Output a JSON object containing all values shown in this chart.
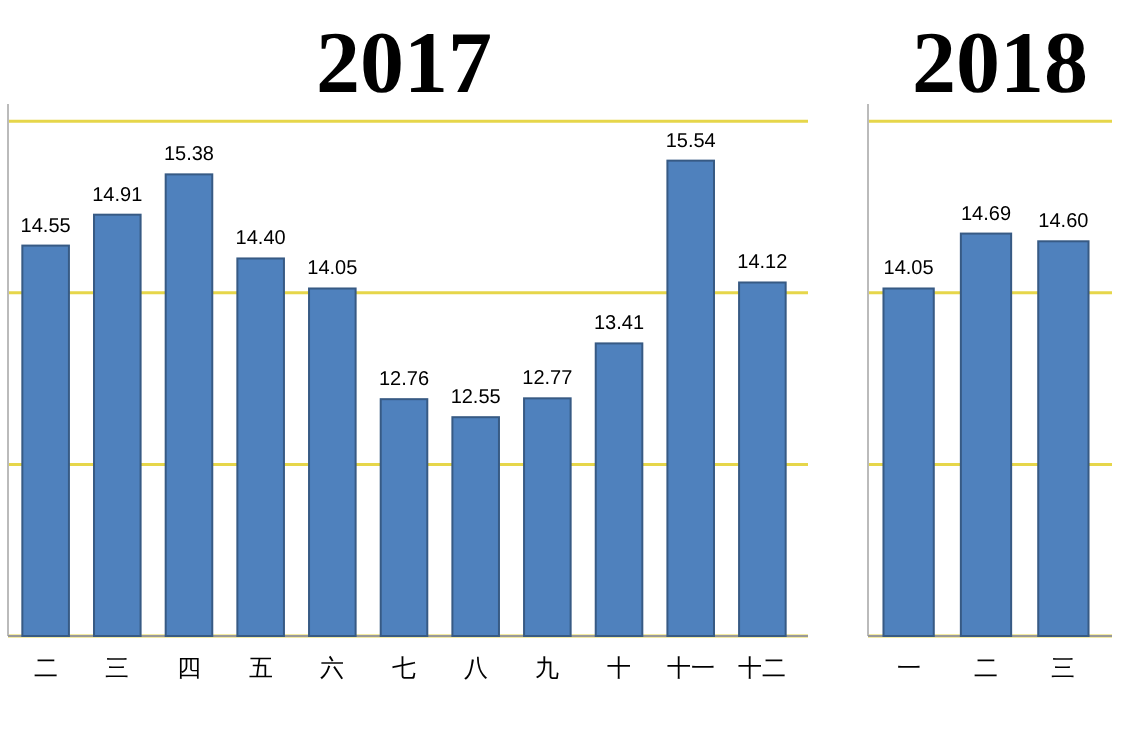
{
  "chart_data": [
    {
      "type": "bar",
      "title": "2017",
      "categories": [
        "二",
        "三",
        "四",
        "五",
        "六",
        "七",
        "八",
        "九",
        "十",
        "十一",
        "十二"
      ],
      "values": [
        14.55,
        14.91,
        15.38,
        14.4,
        14.05,
        12.76,
        12.55,
        12.77,
        13.41,
        15.54,
        14.12
      ],
      "value_labels": [
        "14.55",
        "14.91",
        "15.38",
        "14.40",
        "14.05",
        "12.76",
        "12.55",
        "12.77",
        "13.41",
        "15.54",
        "14.12"
      ],
      "color": "#4f81bd",
      "ylim": [
        10,
        16.2
      ],
      "yticks": [
        {
          "value": 10,
          "label": null
        },
        {
          "value": 12,
          "label": null
        },
        {
          "value": 14,
          "label": null
        },
        {
          "value": 16,
          "label": null
        }
      ],
      "grid": "y",
      "tick_labels": "x"
    },
    {
      "type": "bar",
      "title": "2018",
      "categories": [
        "一",
        "二",
        "三"
      ],
      "values": [
        14.05,
        14.69,
        14.6
      ],
      "value_labels": [
        "14.05",
        "14.69",
        "14.60"
      ],
      "color": "#4f81bd",
      "ylim": [
        10,
        16.2
      ],
      "yticks": [
        {
          "value": 10,
          "label": null
        },
        {
          "value": 12,
          "label": null
        },
        {
          "value": 14,
          "label": null
        },
        {
          "value": 16,
          "label": null
        }
      ],
      "grid": "y",
      "tick_labels": "x"
    }
  ]
}
